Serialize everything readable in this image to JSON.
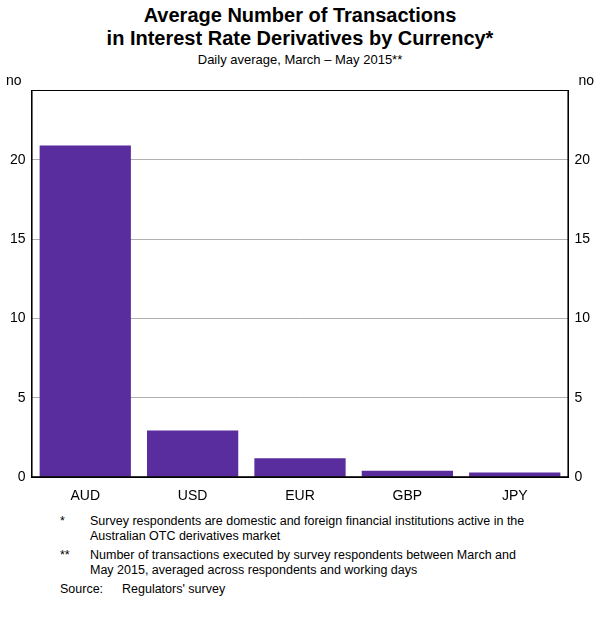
{
  "chart_data": {
    "type": "bar",
    "title": "Average Number of Transactions\nin Interest Rate Derivatives by Currency*",
    "subtitle": "Daily average, March – May 2015**",
    "ylabel": "no",
    "categories": [
      "AUD",
      "USD",
      "EUR",
      "GBP",
      "JPY"
    ],
    "values": [
      20.9,
      2.95,
      1.2,
      0.4,
      0.3
    ],
    "color": "#5a2d9e",
    "ylim": [
      0,
      24.4
    ],
    "yticks": [
      0,
      5,
      10,
      15,
      20
    ],
    "grid": true,
    "notes": [
      {
        "marker": "*",
        "text": "Survey respondents are domestic and foreign financial institutions active in the Australian OTC derivatives market"
      },
      {
        "marker": "**",
        "text": "Number of transactions executed by survey respondents between March and May 2015, averaged across respondents and working days"
      }
    ],
    "source_label": "Source:",
    "source": "Regulators' survey"
  }
}
